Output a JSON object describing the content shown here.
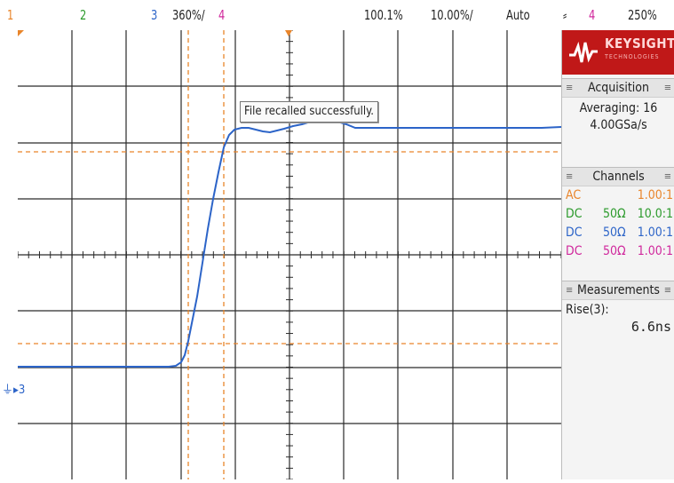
{
  "topbar": {
    "ch1": "1",
    "ch2": "2",
    "ch3": "3",
    "ch3_scale": "360",
    "ch3_scale_unit": "%/",
    "ch4": "4",
    "zoom": "100.1",
    "zoom_unit": "%",
    "timebase": "10.00",
    "timebase_unit": "%/",
    "trigger_mode": "Auto",
    "trigger_channel": "4",
    "trigger_level": "250",
    "trigger_level_unit": "%"
  },
  "logo": {
    "brand": "KEYSIGHT",
    "sub": "TECHNOLOGIES"
  },
  "popup": {
    "message": "File recalled successfully."
  },
  "acquisition": {
    "header": "Acquisition",
    "line1": "Averaging: 16",
    "line2": "4.00GSa/s"
  },
  "channels": {
    "header": "Channels",
    "rows": [
      {
        "coupling": "AC",
        "impedance": "",
        "scale": "1.00:1",
        "color": "#e9852a"
      },
      {
        "coupling": "DC",
        "impedance": "50Ω",
        "scale": "10.0:1",
        "color": "#2b9a2b"
      },
      {
        "coupling": "DC",
        "impedance": "50Ω",
        "scale": "1.00:1",
        "color": "#2c64c8"
      },
      {
        "coupling": "DC",
        "impedance": "50Ω",
        "scale": "1.00:1",
        "color": "#d0279c"
      }
    ]
  },
  "measurements": {
    "header": "Measurements",
    "label": "Rise(3):",
    "value": "6.6ns"
  },
  "marker": {
    "ground_label": "3"
  },
  "colors": {
    "ch1": "#e9852a",
    "ch2": "#2b9a2b",
    "ch3": "#2c64c8",
    "ch4": "#d0279c",
    "grid": "#2a2a2a",
    "logo": "#c01818"
  }
}
